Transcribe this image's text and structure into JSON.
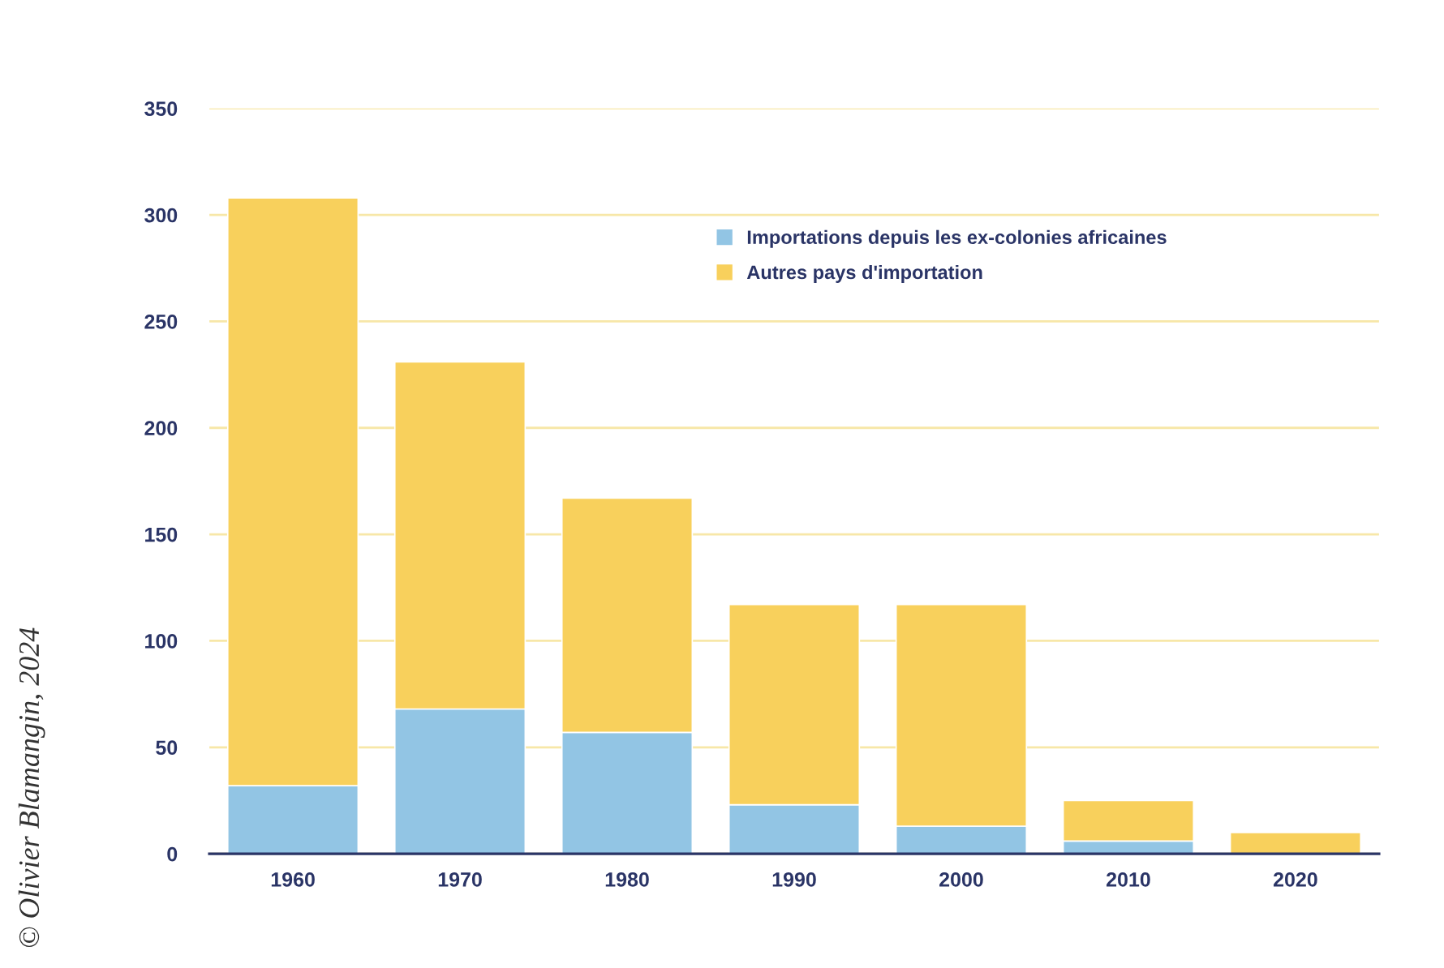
{
  "chart_data": {
    "type": "bar",
    "stacked": true,
    "categories": [
      "1960",
      "1970",
      "1980",
      "1990",
      "2000",
      "2010",
      "2020"
    ],
    "series": [
      {
        "name": "Importations depuis les ex-colonies africaines",
        "color": "#92c5e4",
        "values": [
          32,
          68,
          57,
          23,
          13,
          6,
          0
        ]
      },
      {
        "name": "Autres pays d'importation",
        "color": "#f8d05c",
        "values": [
          276,
          163,
          110,
          94,
          104,
          19,
          10
        ]
      }
    ],
    "ylim": [
      0,
      350
    ],
    "yticks": [
      0,
      50,
      100,
      150,
      200,
      250,
      300,
      350
    ],
    "grid": "y",
    "legend": "top",
    "annotations": [
      "© Olivier Blamangin, 2024"
    ]
  }
}
